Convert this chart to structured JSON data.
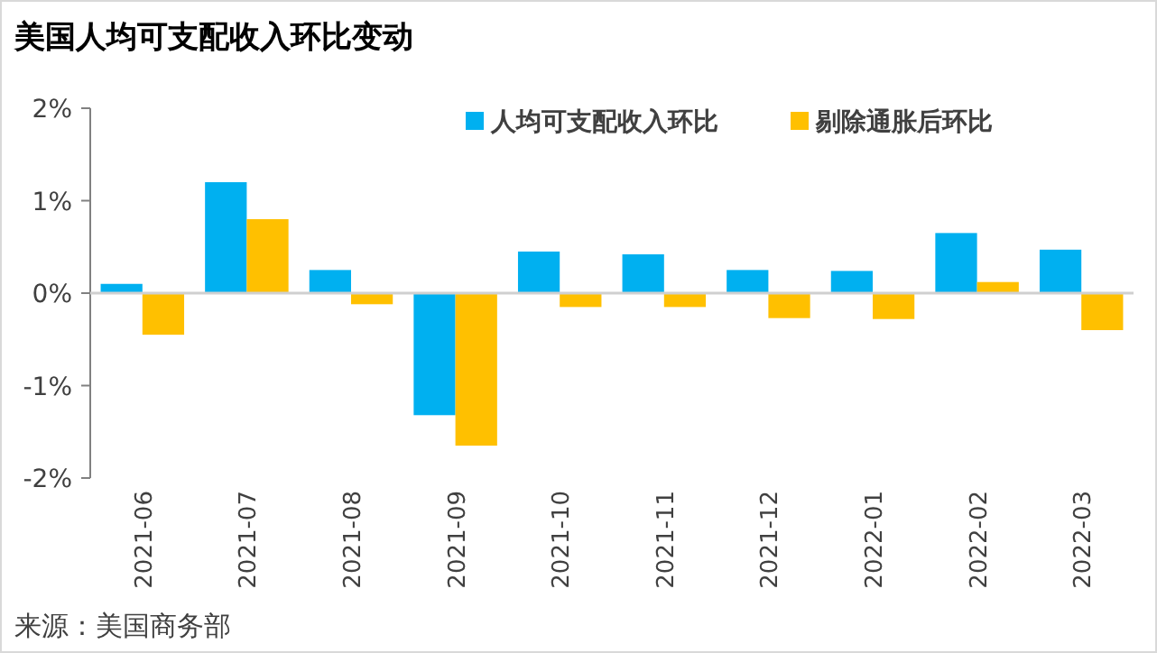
{
  "chart_data": {
    "type": "bar",
    "title": "美国人均可支配收入环比变动",
    "categories": [
      "2021-06",
      "2021-07",
      "2021-08",
      "2021-09",
      "2021-10",
      "2021-11",
      "2021-12",
      "2022-01",
      "2022-02",
      "2022-03"
    ],
    "series": [
      {
        "name": "人均可支配收入环比",
        "color": "#00b0f0",
        "values": [
          0.1,
          1.2,
          0.25,
          -1.32,
          0.45,
          0.42,
          0.25,
          0.24,
          0.65,
          0.47
        ]
      },
      {
        "name": "剔除通胀后环比",
        "color": "#ffc000",
        "values": [
          -0.45,
          0.8,
          -0.12,
          -1.65,
          -0.15,
          -0.15,
          -0.27,
          -0.28,
          0.12,
          -0.4
        ]
      }
    ],
    "ylim": [
      -2,
      2
    ],
    "yticks": [
      {
        "value": -2,
        "label": "-2%"
      },
      {
        "value": -1,
        "label": "-1%"
      },
      {
        "value": 0,
        "label": "0%"
      },
      {
        "value": 1,
        "label": "1%"
      },
      {
        "value": 2,
        "label": "2%"
      }
    ],
    "legend": "top right",
    "annotations": [
      "来源：美国商务部"
    ]
  }
}
